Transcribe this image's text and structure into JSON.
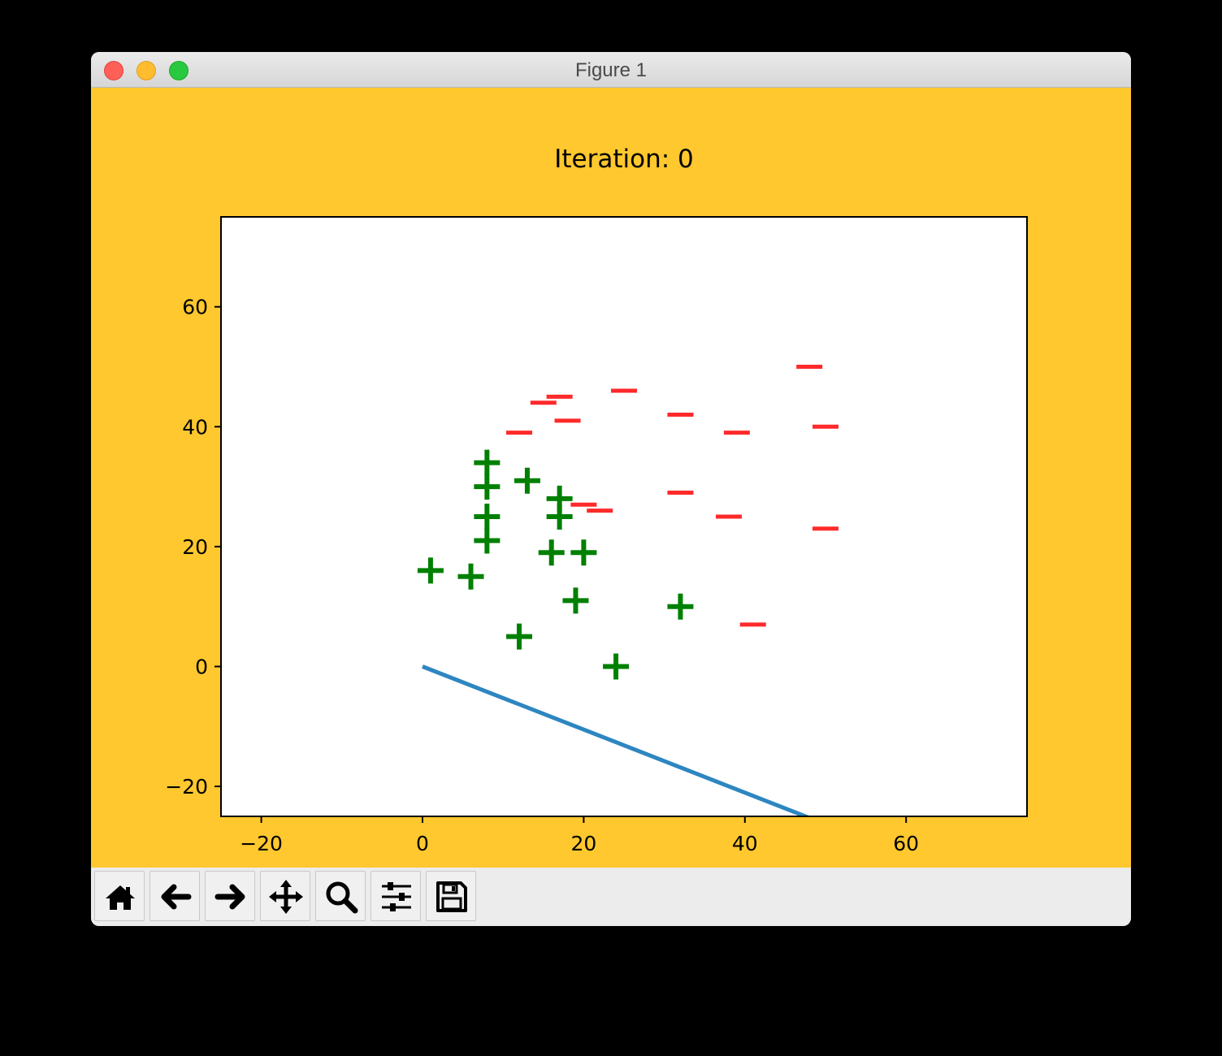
{
  "window": {
    "title": "Figure 1"
  },
  "figure": {
    "background": "#ffc82e"
  },
  "chart_data": {
    "type": "scatter",
    "title": "Iteration: 0",
    "xlabel": "",
    "ylabel": "",
    "xlim": [
      -25,
      75
    ],
    "ylim": [
      -25,
      75
    ],
    "xticks": [
      -20,
      0,
      20,
      40,
      60
    ],
    "yticks": [
      -20,
      0,
      20,
      40,
      60
    ],
    "xtick_labels": [
      "−20",
      "0",
      "20",
      "40",
      "60"
    ],
    "ytick_labels": [
      "−20",
      "0",
      "20",
      "40",
      "60"
    ],
    "grid": false,
    "series": [
      {
        "marker": "+",
        "color": "#008000",
        "points": [
          [
            8,
            34
          ],
          [
            8,
            30
          ],
          [
            8,
            25
          ],
          [
            8,
            21
          ],
          [
            13,
            31
          ],
          [
            17,
            28
          ],
          [
            17,
            25
          ],
          [
            16,
            19
          ],
          [
            20,
            19
          ],
          [
            1,
            16
          ],
          [
            6,
            15
          ],
          [
            19,
            11
          ],
          [
            32,
            10
          ],
          [
            12,
            5
          ],
          [
            24,
            0
          ]
        ]
      },
      {
        "marker": "_",
        "color": "#ff2a2a",
        "points": [
          [
            48,
            50
          ],
          [
            17,
            45
          ],
          [
            15,
            44
          ],
          [
            25,
            46
          ],
          [
            32,
            42
          ],
          [
            18,
            41
          ],
          [
            12,
            39
          ],
          [
            39,
            39
          ],
          [
            50,
            40
          ],
          [
            20,
            27
          ],
          [
            22,
            26
          ],
          [
            32,
            29
          ],
          [
            38,
            25
          ],
          [
            50,
            23
          ],
          [
            41,
            7
          ]
        ]
      }
    ],
    "line": {
      "color": "#2e86c1",
      "points": [
        [
          0,
          0
        ],
        [
          50,
          -26.3
        ]
      ]
    }
  },
  "toolbar": {
    "buttons": [
      {
        "name": "home",
        "icon": "home-icon"
      },
      {
        "name": "back",
        "icon": "arrow-left-icon"
      },
      {
        "name": "forward",
        "icon": "arrow-right-icon"
      },
      {
        "name": "pan",
        "icon": "move-icon"
      },
      {
        "name": "zoom",
        "icon": "magnifier-icon"
      },
      {
        "name": "configure-subplots",
        "icon": "sliders-icon"
      },
      {
        "name": "save",
        "icon": "floppy-disk-icon"
      }
    ]
  }
}
